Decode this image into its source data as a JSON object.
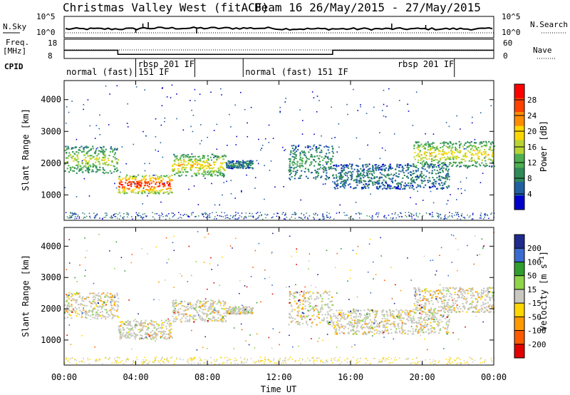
{
  "title": "Christmas Valley West (fitACF)",
  "subtitle": "Beam 16 26/May/2015 - 27/May/2015",
  "x_axis": {
    "label": "Time UT",
    "ticks": [
      "00:00",
      "04:00",
      "08:00",
      "12:00",
      "16:00",
      "20:00",
      "00:00"
    ],
    "range_hours": [
      0,
      24
    ]
  },
  "nsky_panel": {
    "left_label": "N.Sky",
    "right_label": "N.Search",
    "left_ticks": [
      "10^5",
      "10^0"
    ],
    "right_ticks": [
      "10^5",
      "10^0"
    ]
  },
  "freq_panel": {
    "left_label": "Freq.",
    "left_unit": "[MHz]",
    "right_label": "Nave",
    "left_ticks": [
      "18",
      "8"
    ],
    "right_ticks": [
      "60",
      "0"
    ],
    "freq_mhz": [
      {
        "start_h": 0,
        "end_h": 3,
        "value": 13.2
      },
      {
        "start_h": 3,
        "end_h": 15,
        "value": 10.6
      },
      {
        "start_h": 15,
        "end_h": 24,
        "value": 13.2
      }
    ]
  },
  "cpid_panel": {
    "label": "CPID",
    "modes": [
      {
        "start_h": 0,
        "text": "normal (fast) 151 IF"
      },
      {
        "start_h": 4,
        "text": "rbsp 201 IF"
      },
      {
        "start_h": 10,
        "text": "normal (fast) 151 IF"
      },
      {
        "start_h": 18.5,
        "text": "rbsp 201 IF"
      }
    ],
    "boundaries_h": [
      4,
      7.3,
      10,
      21.8
    ]
  },
  "power_panel": {
    "ylabel": "Slant Range [km]",
    "yticks": [
      1000,
      2000,
      3000,
      4000
    ],
    "yrange": [
      200,
      4600
    ],
    "colorbar_label": "Power [dB]",
    "colorbar_ticks": [
      "28",
      "24",
      "20",
      "16",
      "12",
      "8",
      "4"
    ],
    "colorbar_colors": [
      "#ff0000",
      "#ff4000",
      "#ff8c00",
      "#ffd700",
      "#b8d432",
      "#4caf50",
      "#2e8b57",
      "#2060a0",
      "#0000cd"
    ]
  },
  "velocity_panel": {
    "ylabel": "Slant Range [km]",
    "yticks": [
      1000,
      2000,
      3000,
      4000
    ],
    "yrange": [
      200,
      4600
    ],
    "colorbar_label": "Velocity [m s",
    "colorbar_label_sup": "-1",
    "colorbar_label_end": "]",
    "colorbar_ticks": [
      "200",
      "100",
      "50",
      "15",
      "-15",
      "-50",
      "-100",
      "-200"
    ],
    "colorbar_colors": [
      "#1e2a8c",
      "#3a6bd0",
      "#2f9e2f",
      "#8fd44a",
      "#c8c8c0",
      "#ffd700",
      "#ff9900",
      "#ff5a00",
      "#e00000"
    ]
  },
  "chart_data": {
    "type": "heatmap",
    "title": "Christmas Valley West (fitACF)",
    "subtitle": "Beam 16 26/May/2015 - 27/May/2015",
    "xlabel": "Time UT",
    "ylabel": "Slant Range [km]",
    "xlim_hours": [
      0,
      24
    ],
    "ylim_km": [
      200,
      4600
    ],
    "series": [
      {
        "name": "Power [dB]",
        "crange": [
          0,
          30
        ]
      },
      {
        "name": "Velocity",
        "crange": [
          -200,
          200
        ]
      }
    ],
    "echo_bands_power": [
      {
        "t0": 0.0,
        "t1": 3.0,
        "r0": 1700,
        "r1": 2550,
        "p": 14
      },
      {
        "t0": 3.0,
        "t1": 6.0,
        "r0": 1050,
        "r1": 1650,
        "p": 26
      },
      {
        "t0": 6.0,
        "t1": 9.0,
        "r0": 1600,
        "r1": 2300,
        "p": 17
      },
      {
        "t0": 9.0,
        "t1": 10.5,
        "r0": 1850,
        "r1": 2100,
        "p": 7
      },
      {
        "t0": 12.5,
        "t1": 15.0,
        "r0": 1500,
        "r1": 2600,
        "p": 8
      },
      {
        "t0": 15.0,
        "t1": 21.5,
        "r0": 1200,
        "r1": 2000,
        "p": 6
      },
      {
        "t0": 19.5,
        "t1": 24.0,
        "r0": 1900,
        "r1": 2700,
        "p": 16
      }
    ]
  }
}
